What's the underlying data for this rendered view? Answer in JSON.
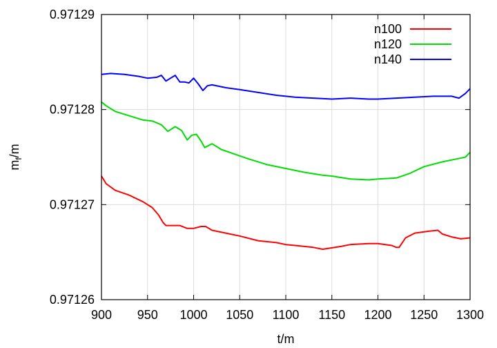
{
  "chart_data": {
    "type": "line",
    "xlabel": "t/m",
    "ylabel_main": "m",
    "ylabel_sub": "f",
    "ylabel_tail": "/m",
    "xlim": [
      900,
      1300
    ],
    "ylim": [
      0.97126,
      0.97129
    ],
    "xticks": [
      900,
      950,
      1000,
      1050,
      1100,
      1150,
      1200,
      1250,
      1300
    ],
    "yticks": [
      "0.97126",
      "0.97127",
      "0.97128",
      "0.97129"
    ],
    "grid": true,
    "legend_position": "top-right",
    "series": [
      {
        "name": "n100",
        "color": "#ff0000",
        "x": [
          900,
          905,
          915,
          930,
          945,
          955,
          962,
          967,
          970,
          975,
          985,
          993,
          1000,
          1008,
          1013,
          1020,
          1035,
          1050,
          1070,
          1090,
          1100,
          1110,
          1130,
          1140,
          1160,
          1170,
          1190,
          1200,
          1215,
          1220,
          1223,
          1230,
          1240,
          1255,
          1265,
          1270,
          1280,
          1290,
          1300
        ],
        "y": [
          0.971273,
          0.9712722,
          0.9712715,
          0.971271,
          0.9712703,
          0.9712697,
          0.9712689,
          0.9712681,
          0.9712678,
          0.9712678,
          0.9712678,
          0.9712675,
          0.9712675,
          0.9712677,
          0.9712677,
          0.9712673,
          0.971267,
          0.9712667,
          0.9712662,
          0.971266,
          0.9712658,
          0.9712657,
          0.9712655,
          0.9712653,
          0.9712656,
          0.9712658,
          0.9712659,
          0.9712659,
          0.9712657,
          0.9712655,
          0.9712655,
          0.9712665,
          0.971267,
          0.9712672,
          0.9712673,
          0.9712669,
          0.9712666,
          0.9712664,
          0.9712665
        ]
      },
      {
        "name": "n120",
        "color": "#00dd00",
        "x": [
          900,
          905,
          915,
          925,
          935,
          945,
          955,
          965,
          972,
          980,
          987,
          993,
          998,
          1003,
          1008,
          1012,
          1020,
          1030,
          1045,
          1060,
          1080,
          1100,
          1120,
          1140,
          1150,
          1170,
          1190,
          1200,
          1220,
          1235,
          1250,
          1270,
          1285,
          1295,
          1300
        ],
        "y": [
          0.9712808,
          0.9712804,
          0.9712798,
          0.9712795,
          0.9712792,
          0.9712789,
          0.9712788,
          0.9712784,
          0.9712777,
          0.9712782,
          0.9712778,
          0.9712768,
          0.9712773,
          0.9712774,
          0.9712767,
          0.971276,
          0.9712764,
          0.9712758,
          0.9712753,
          0.9712748,
          0.9712742,
          0.9712738,
          0.9712734,
          0.9712731,
          0.971273,
          0.9712727,
          0.9712726,
          0.9712727,
          0.9712728,
          0.9712733,
          0.971274,
          0.9712745,
          0.9712748,
          0.971275,
          0.9712755
        ]
      },
      {
        "name": "n140",
        "color": "#0000ff",
        "x": [
          900,
          910,
          925,
          940,
          950,
          960,
          965,
          970,
          975,
          980,
          985,
          990,
          995,
          1000,
          1005,
          1010,
          1015,
          1020,
          1035,
          1050,
          1070,
          1090,
          1110,
          1130,
          1150,
          1170,
          1190,
          1200,
          1220,
          1240,
          1260,
          1280,
          1288,
          1295,
          1300
        ],
        "y": [
          0.9712837,
          0.9712838,
          0.9712837,
          0.9712835,
          0.9712833,
          0.9712834,
          0.9712836,
          0.971283,
          0.9712833,
          0.9712836,
          0.9712829,
          0.9712829,
          0.9712828,
          0.9712833,
          0.9712827,
          0.971282,
          0.9712825,
          0.9712826,
          0.9712823,
          0.9712821,
          0.9712818,
          0.9712815,
          0.9712813,
          0.9712812,
          0.9712811,
          0.9712812,
          0.9712811,
          0.9712811,
          0.9712812,
          0.9712813,
          0.9712814,
          0.9712814,
          0.9712812,
          0.9712817,
          0.9712822
        ]
      }
    ]
  }
}
